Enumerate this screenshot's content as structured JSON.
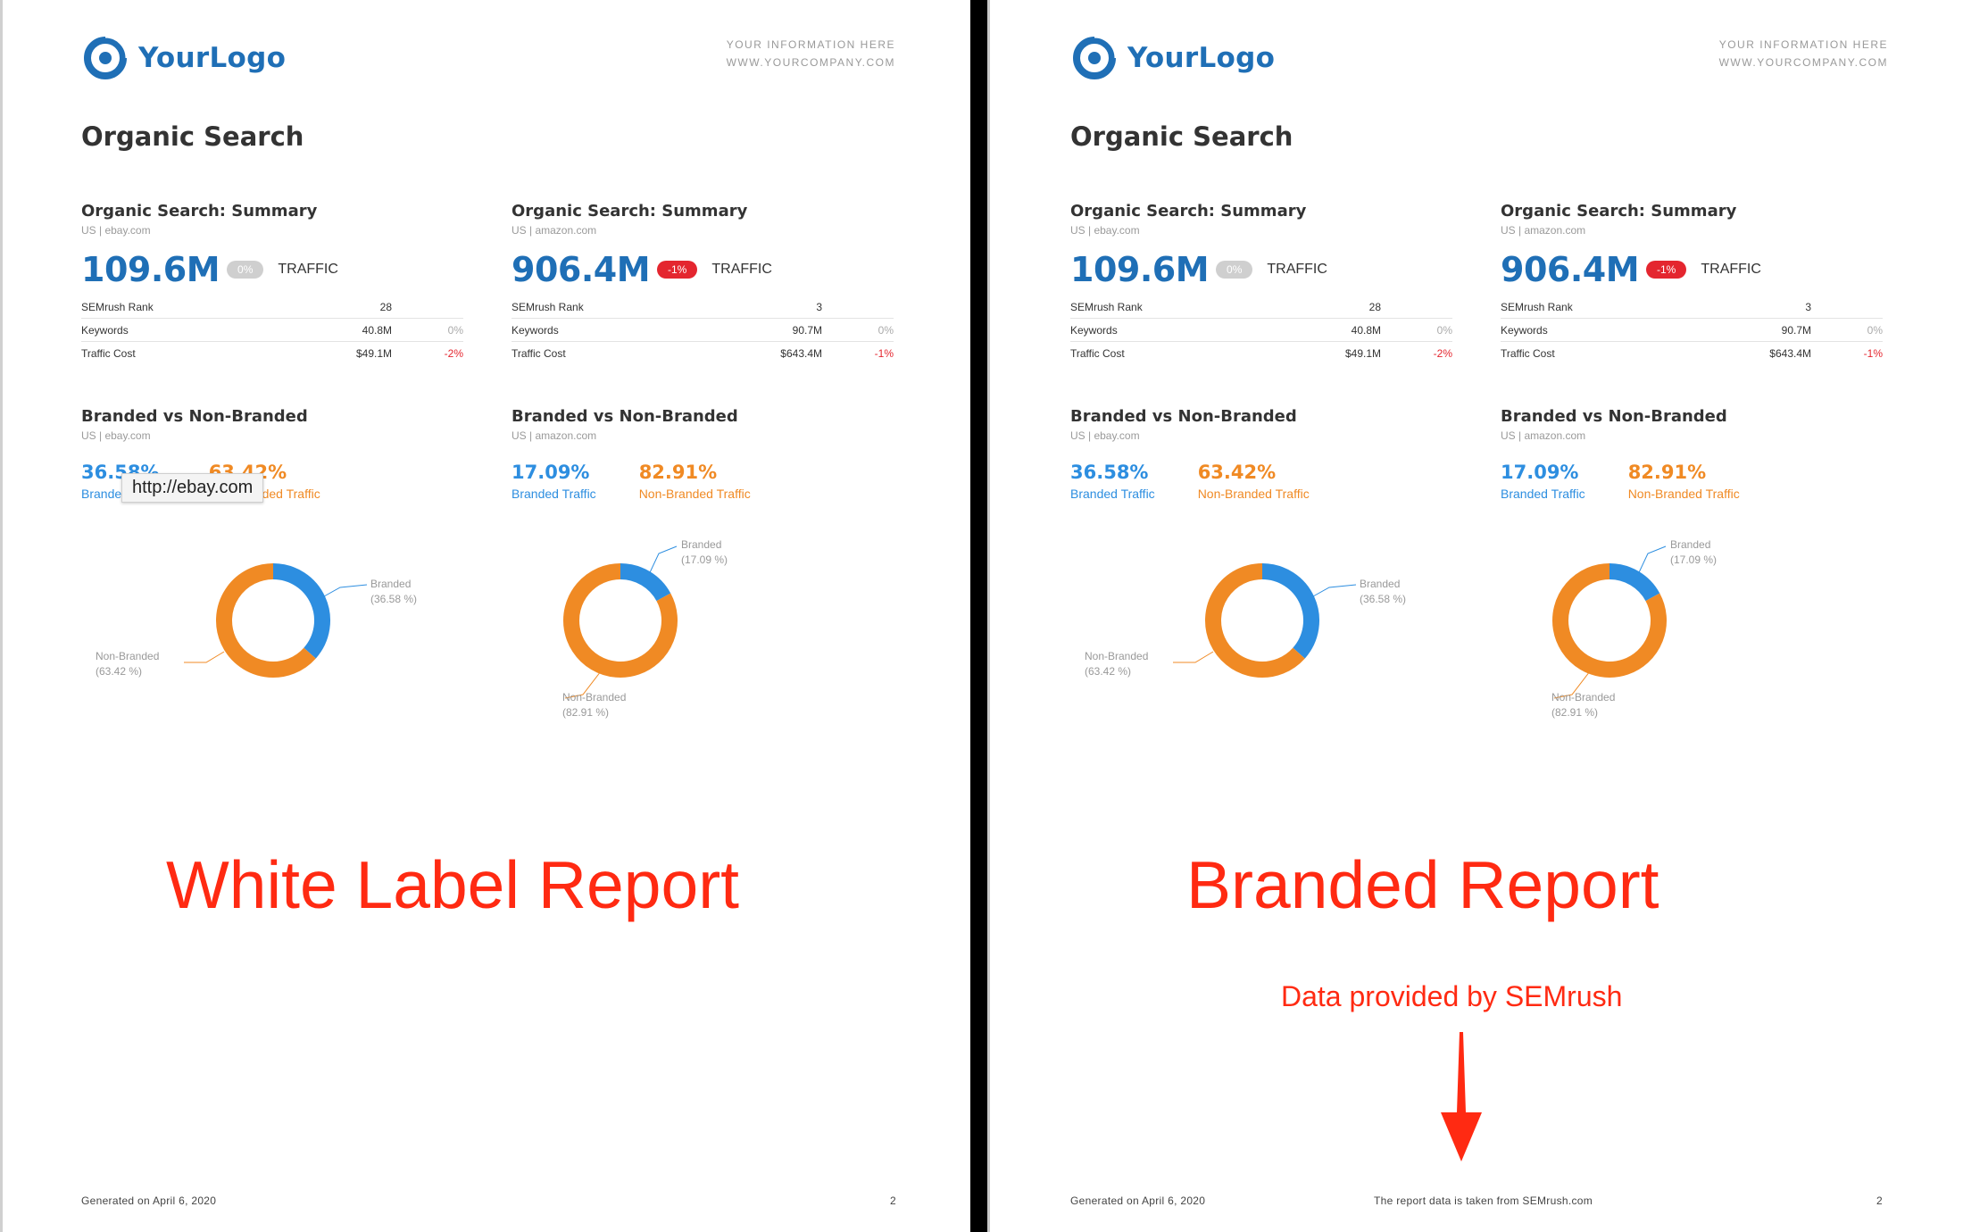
{
  "brand": {
    "logo_text": "YourLogo",
    "info_line1": "YOUR INFORMATION HERE",
    "info_line2": "WWW.YOURCOMPANY.COM"
  },
  "colors": {
    "primary_blue": "#1f6fb6",
    "branded_blue": "#2d8ee0",
    "nonbranded_orange": "#f08a24",
    "annotation_red": "#ff2a12",
    "badge_red": "#e4262f"
  },
  "page_title": "Organic Search",
  "summaries": [
    {
      "title": "Organic Search: Summary",
      "sub": "US | ebay.com",
      "traffic": "109.6M",
      "badge": "0%",
      "traffic_label": "TRAFFIC",
      "rows": [
        {
          "label": "SEMrush Rank",
          "value": "28",
          "change": ""
        },
        {
          "label": "Keywords",
          "value": "40.8M",
          "change": "0%"
        },
        {
          "label": "Traffic Cost",
          "value": "$49.1M",
          "change": "-2%"
        }
      ]
    },
    {
      "title": "Organic Search: Summary",
      "sub": "US | amazon.com",
      "traffic": "906.4M",
      "badge": "-1%",
      "traffic_label": "TRAFFIC",
      "rows": [
        {
          "label": "SEMrush Rank",
          "value": "3",
          "change": ""
        },
        {
          "label": "Keywords",
          "value": "90.7M",
          "change": "0%"
        },
        {
          "label": "Traffic Cost",
          "value": "$643.4M",
          "change": "-1%"
        }
      ]
    }
  ],
  "branded": [
    {
      "title": "Branded vs Non-Branded",
      "sub": "US | ebay.com",
      "branded_pct": "36.58%",
      "nonbranded_pct": "63.42%",
      "branded_label": "Branded Traffic",
      "nonbranded_label": "Non-Branded Traffic",
      "donut_branded_label": "Branded",
      "donut_branded_value": "(36.58 %)",
      "donut_nonbranded_label": "Non-Branded",
      "donut_nonbranded_value": "(63.42 %)"
    },
    {
      "title": "Branded vs Non-Branded",
      "sub": "US | amazon.com",
      "branded_pct": "17.09%",
      "nonbranded_pct": "82.91%",
      "branded_label": "Branded Traffic",
      "nonbranded_label": "Non-Branded Traffic",
      "donut_branded_label": "Branded",
      "donut_branded_value": "(17.09 %)",
      "donut_nonbranded_label": "Non-Branded",
      "donut_nonbranded_value": "(82.91 %)"
    }
  ],
  "chart_data": [
    {
      "type": "pie",
      "categories": [
        "Branded",
        "Non-Branded"
      ],
      "values": [
        36.58,
        63.42
      ]
    },
    {
      "type": "pie",
      "categories": [
        "Branded",
        "Non-Branded"
      ],
      "values": [
        17.09,
        82.91
      ]
    }
  ],
  "tooltip": "http://ebay.com",
  "left_overlay": "White Label Report",
  "right_overlay": "Branded Report",
  "right_provided": "Data provided by SEMrush",
  "footer": {
    "generated": "Generated on April 6, 2020",
    "page_number": "2",
    "source_note": "The report data is taken from SEMrush.com"
  }
}
